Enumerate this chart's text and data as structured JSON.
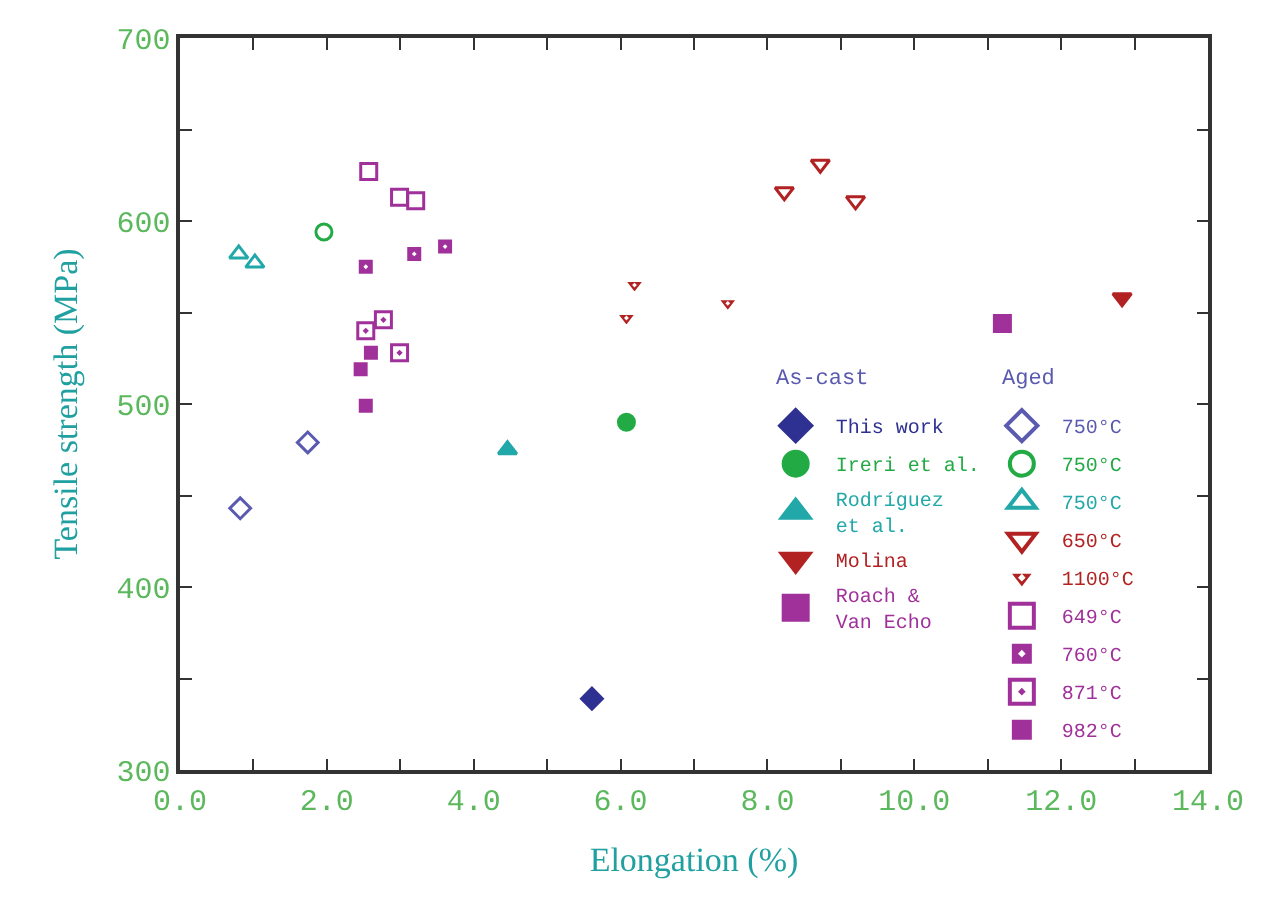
{
  "chart_data": {
    "type": "scatter",
    "xlabel": "Elongation (%)",
    "ylabel": "Tensile strength (MPa)",
    "xlim": [
      0,
      14
    ],
    "ylim": [
      300,
      700
    ],
    "xticks": [
      {
        "value": 0,
        "label": "0.0"
      },
      {
        "value": 1,
        "label": null
      },
      {
        "value": 2,
        "label": "2.0"
      },
      {
        "value": 3,
        "label": null
      },
      {
        "value": 4,
        "label": "4.0"
      },
      {
        "value": 5,
        "label": null
      },
      {
        "value": 6,
        "label": "6.0"
      },
      {
        "value": 7,
        "label": null
      },
      {
        "value": 8,
        "label": "8.0"
      },
      {
        "value": 9,
        "label": null
      },
      {
        "value": 10,
        "label": "10.0"
      },
      {
        "value": 11,
        "label": null
      },
      {
        "value": 12,
        "label": "12.0"
      },
      {
        "value": 13,
        "label": null
      },
      {
        "value": 14,
        "label": "14.0"
      }
    ],
    "yticks": [
      300,
      {
        "value": 350,
        "label": null
      },
      400,
      {
        "value": 450,
        "label": null
      },
      500,
      {
        "value": 550,
        "label": null
      },
      600,
      {
        "value": 650,
        "label": null
      },
      700
    ],
    "legend": "bottom right",
    "annotations": [
      "As-cast",
      "Aged"
    ],
    "series": [
      {
        "name": "This work",
        "color": "#2e3192",
        "marker": "diamond",
        "x": [
          5.61
        ],
        "values": [
          339
        ]
      },
      {
        "name": "750°C",
        "color": "#5a5ab0",
        "marker": "diamond-open",
        "x": [
          1.74,
          0.82
        ],
        "values": [
          479,
          443
        ]
      },
      {
        "name": "Ireri et al.",
        "color": "#22aa44",
        "marker": "circle",
        "x": [
          6.08
        ],
        "values": [
          490
        ]
      },
      {
        "name": "750°C",
        "color": "#22aa44",
        "marker": "circle-open",
        "x": [
          1.96
        ],
        "values": [
          594
        ]
      },
      {
        "name": "Rodríguez et al.",
        "color": "#22a8a8",
        "marker": "triangle-up",
        "x": [
          4.46
        ],
        "values": [
          475
        ]
      },
      {
        "name": "750°C",
        "color": "#22a8a8",
        "marker": "triangle-up-open",
        "x": [
          0.8,
          1.02
        ],
        "values": [
          582,
          577
        ]
      },
      {
        "name": "Molina",
        "color": "#b22222",
        "marker": "triangle-down",
        "x": [
          12.83
        ],
        "values": [
          558
        ]
      },
      {
        "name": "650°C",
        "color": "#b22222",
        "marker": "triangle-down-open",
        "x": [
          8.23,
          8.72,
          9.2
        ],
        "values": [
          616,
          631,
          611
        ]
      },
      {
        "name": "1100°C",
        "color": "#b22222",
        "marker": "triangle-down-dot",
        "x": [
          6.19,
          6.08,
          7.46
        ],
        "values": [
          565,
          547,
          555
        ]
      },
      {
        "name": "Roach & Van Echo",
        "color": "#a0309a",
        "marker": "square",
        "x": [
          11.2
        ],
        "values": [
          544
        ]
      },
      {
        "name": "649°C",
        "color": "#a0309a",
        "marker": "square-open",
        "x": [
          2.57,
          2.99,
          3.21
        ],
        "values": [
          627,
          613,
          611
        ]
      },
      {
        "name": "760°C",
        "color": "#a0309a",
        "marker": "square-dot",
        "x": [
          2.53,
          3.19,
          3.61
        ],
        "values": [
          575,
          582,
          586
        ]
      },
      {
        "name": "871°C",
        "color": "#a0309a",
        "marker": "square-open-dot",
        "x": [
          2.77,
          2.53,
          2.99
        ],
        "values": [
          546,
          540,
          528
        ]
      },
      {
        "name": "982°C",
        "color": "#a0309a",
        "marker": "square",
        "x": [
          2.6,
          2.46,
          2.53
        ],
        "values": [
          528,
          519,
          499
        ]
      }
    ]
  }
}
